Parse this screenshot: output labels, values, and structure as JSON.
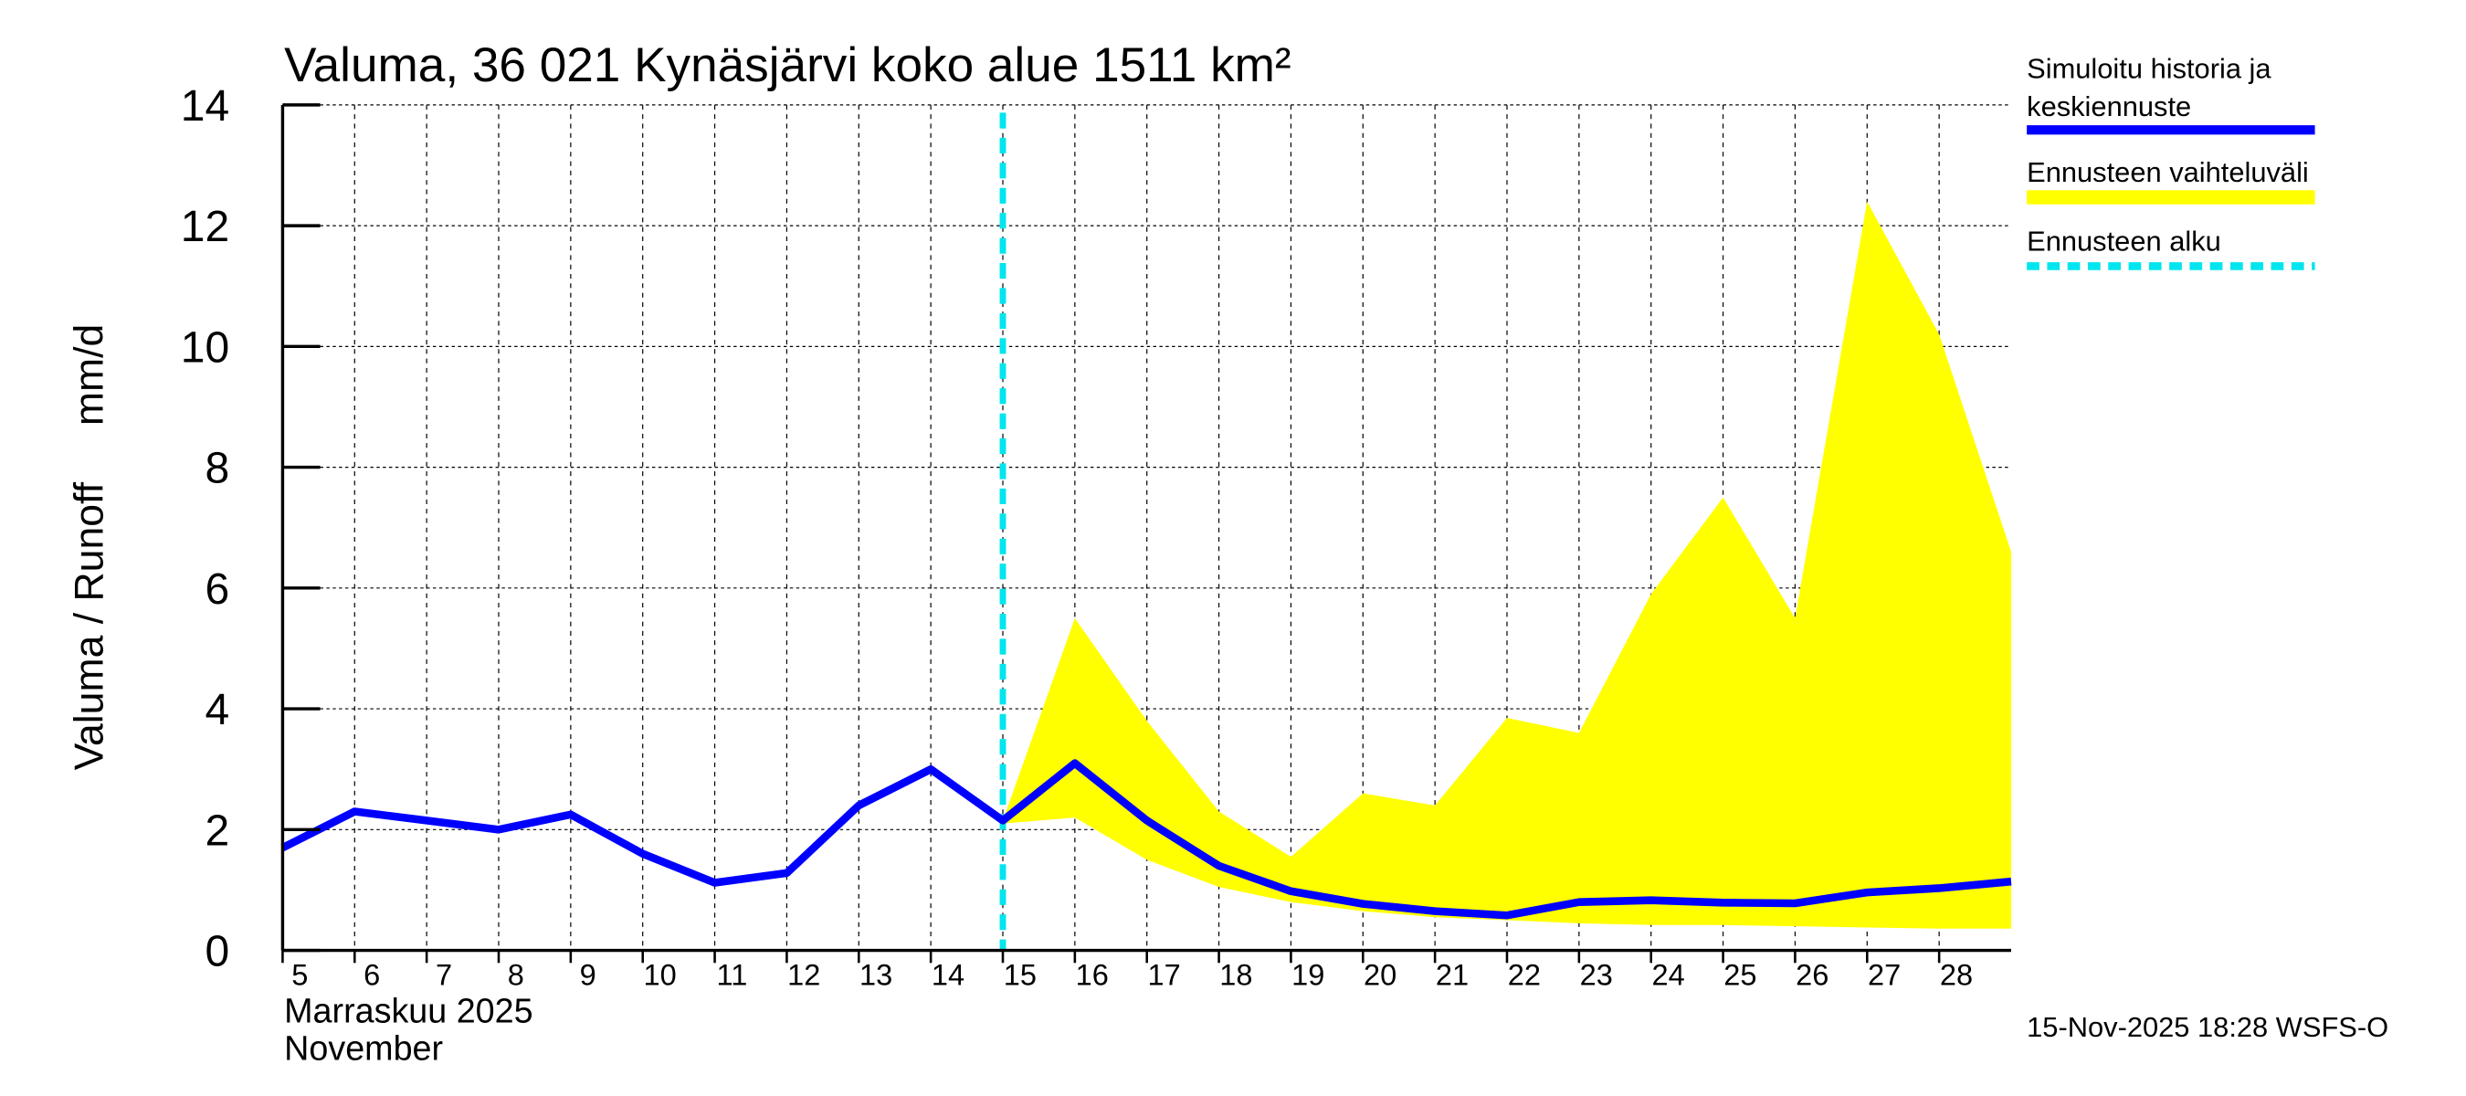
{
  "chart_data": {
    "type": "line",
    "title": "Valuma, 36 021 Kynäsjärvi koko alue 1511 km²",
    "ylabel": "Valuma / Runoff     mm/d",
    "xlabel_lines": [
      "Marraskuu 2025",
      "November"
    ],
    "ylim": [
      0,
      14
    ],
    "yticks": [
      0,
      2,
      4,
      6,
      8,
      10,
      12,
      14
    ],
    "xlim": [
      5,
      29
    ],
    "xtick_labels": [
      "5",
      "6",
      "7",
      "8",
      "9",
      "10",
      "11",
      "12",
      "13",
      "14",
      "15",
      "16",
      "17",
      "18",
      "19",
      "20",
      "21",
      "22",
      "23",
      "24",
      "25",
      "26",
      "27",
      "28"
    ],
    "grid": true,
    "legend_placement": "right",
    "forecast_start": 15,
    "series": [
      {
        "name": "Simuloitu historia ja keskiennuste",
        "color": "#0000ff",
        "x": [
          5,
          6,
          7,
          8,
          9,
          10,
          11,
          12,
          13,
          14,
          15,
          16,
          17,
          18,
          19,
          20,
          21,
          22,
          23,
          24,
          25,
          26,
          27,
          28,
          29
        ],
        "y": [
          1.7,
          2.3,
          2.15,
          2.0,
          2.25,
          1.6,
          1.12,
          1.28,
          2.4,
          3.0,
          2.15,
          3.1,
          2.15,
          1.4,
          0.98,
          0.77,
          0.65,
          0.58,
          0.8,
          0.83,
          0.79,
          0.78,
          0.96,
          1.03,
          1.14
        ]
      },
      {
        "name": "Ennusteen vaihteluväli",
        "color": "#ffff00",
        "x": [
          15,
          16,
          17,
          18,
          19,
          20,
          21,
          22,
          23,
          24,
          25,
          26,
          27,
          28,
          29
        ],
        "upper": [
          2.15,
          5.5,
          3.8,
          2.3,
          1.55,
          2.6,
          2.4,
          3.85,
          3.6,
          5.9,
          7.5,
          5.5,
          12.4,
          10.2,
          6.6
        ],
        "lower": [
          2.1,
          2.2,
          1.5,
          1.05,
          0.8,
          0.65,
          0.55,
          0.5,
          0.45,
          0.42,
          0.42,
          0.4,
          0.38,
          0.36,
          0.36
        ]
      },
      {
        "name": "Ennusteen alku",
        "color": "#00e5ee"
      }
    ],
    "legend": [
      "Simuloitu historia ja",
      "keskiennuste",
      "Ennusteen vaihteluväli",
      "Ennusteen alku"
    ],
    "footer": "15-Nov-2025 18:28 WSFS-O"
  }
}
